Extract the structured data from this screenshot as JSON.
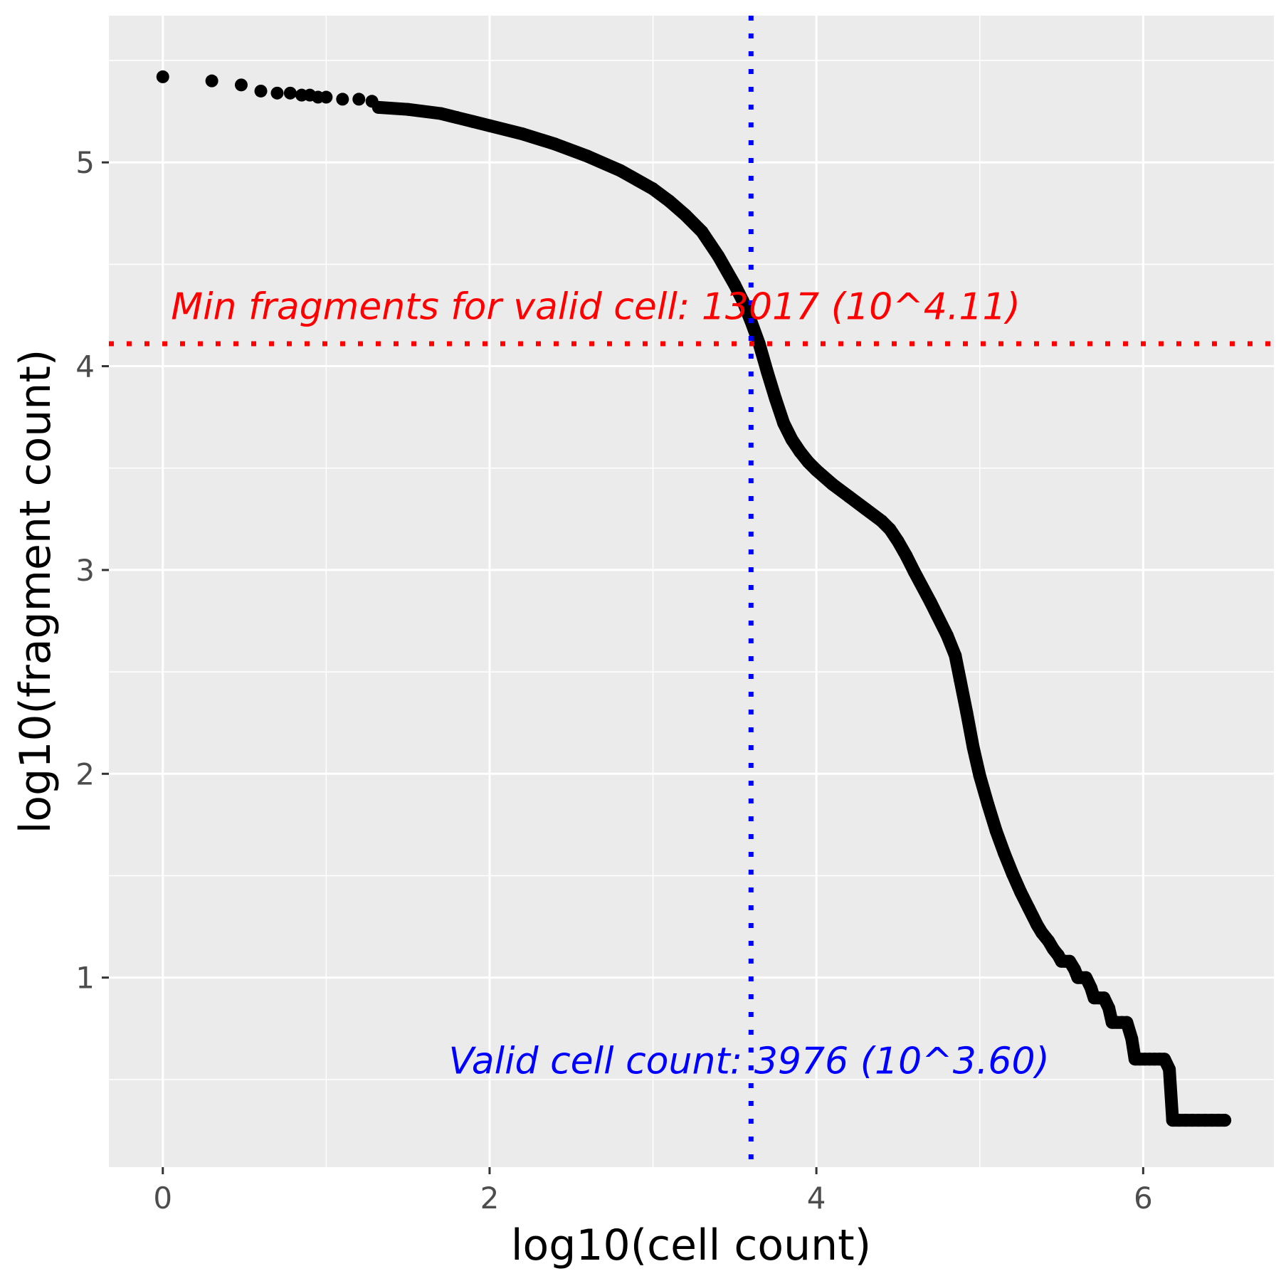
{
  "chart_data": {
    "type": "scatter",
    "title": "",
    "xlabel": "log10(cell count)",
    "ylabel": "log10(fragment count)",
    "xlim": [
      -0.33,
      6.8
    ],
    "ylim": [
      0.07,
      5.72
    ],
    "xticks": [
      0,
      2,
      4,
      6
    ],
    "xtick_labels": [
      "0",
      "2",
      "4",
      "6"
    ],
    "yticks": [
      1,
      2,
      3,
      4,
      5
    ],
    "ytick_labels": [
      "1",
      "2",
      "3",
      "4",
      "5"
    ],
    "grid": true,
    "legend": "none",
    "colors": {
      "panel": "#ebebeb",
      "grid": "#ffffff",
      "points": "#000000",
      "hline": "#ff0000",
      "vline": "#0000ff"
    },
    "series": [
      {
        "points": [
          [
            0.0,
            5.42
          ],
          [
            0.3,
            5.4
          ],
          [
            0.48,
            5.38
          ],
          [
            0.6,
            5.35
          ],
          [
            0.7,
            5.34
          ],
          [
            0.78,
            5.34
          ],
          [
            0.85,
            5.33
          ],
          [
            0.9,
            5.33
          ],
          [
            0.95,
            5.32
          ],
          [
            1.0,
            5.32
          ],
          [
            1.1,
            5.31
          ],
          [
            1.2,
            5.31
          ],
          [
            1.28,
            5.3
          ],
          [
            1.32,
            5.27
          ],
          [
            1.5,
            5.26
          ],
          [
            1.7,
            5.24
          ],
          [
            1.8,
            5.22
          ],
          [
            1.9,
            5.2
          ],
          [
            2.0,
            5.18
          ],
          [
            2.2,
            5.14
          ],
          [
            2.4,
            5.09
          ],
          [
            2.6,
            5.03
          ],
          [
            2.8,
            4.96
          ],
          [
            3.0,
            4.87
          ],
          [
            3.1,
            4.81
          ],
          [
            3.2,
            4.74
          ],
          [
            3.3,
            4.66
          ],
          [
            3.4,
            4.54
          ],
          [
            3.5,
            4.4
          ],
          [
            3.55,
            4.32
          ],
          [
            3.6,
            4.22
          ],
          [
            3.65,
            4.11
          ],
          [
            3.7,
            3.97
          ],
          [
            3.75,
            3.84
          ],
          [
            3.8,
            3.72
          ],
          [
            3.85,
            3.64
          ],
          [
            3.9,
            3.58
          ],
          [
            3.95,
            3.53
          ],
          [
            4.0,
            3.49
          ],
          [
            4.1,
            3.42
          ],
          [
            4.2,
            3.36
          ],
          [
            4.3,
            3.3
          ],
          [
            4.4,
            3.24
          ],
          [
            4.45,
            3.2
          ],
          [
            4.5,
            3.14
          ],
          [
            4.55,
            3.07
          ],
          [
            4.6,
            2.99
          ],
          [
            4.7,
            2.84
          ],
          [
            4.8,
            2.68
          ],
          [
            4.85,
            2.58
          ],
          [
            4.88,
            2.46
          ],
          [
            4.92,
            2.3
          ],
          [
            4.96,
            2.13
          ],
          [
            5.0,
            1.99
          ],
          [
            5.05,
            1.85
          ],
          [
            5.1,
            1.72
          ],
          [
            5.15,
            1.61
          ],
          [
            5.2,
            1.51
          ],
          [
            5.25,
            1.42
          ],
          [
            5.3,
            1.34
          ],
          [
            5.35,
            1.26
          ],
          [
            5.38,
            1.22
          ],
          [
            5.42,
            1.18
          ],
          [
            5.45,
            1.14
          ],
          [
            5.48,
            1.11
          ],
          [
            5.5,
            1.08
          ],
          [
            5.52,
            1.08
          ],
          [
            5.55,
            1.08
          ],
          [
            5.58,
            1.04
          ],
          [
            5.6,
            1.0
          ],
          [
            5.62,
            1.0
          ],
          [
            5.65,
            1.0
          ],
          [
            5.68,
            0.95
          ],
          [
            5.7,
            0.9
          ],
          [
            5.73,
            0.9
          ],
          [
            5.76,
            0.9
          ],
          [
            5.79,
            0.85
          ],
          [
            5.81,
            0.78
          ],
          [
            5.84,
            0.78
          ],
          [
            5.87,
            0.78
          ],
          [
            5.9,
            0.78
          ],
          [
            5.93,
            0.7
          ],
          [
            5.95,
            0.6
          ],
          [
            5.98,
            0.6
          ],
          [
            6.01,
            0.6
          ],
          [
            6.04,
            0.6
          ],
          [
            6.07,
            0.6
          ],
          [
            6.1,
            0.6
          ],
          [
            6.13,
            0.6
          ],
          [
            6.16,
            0.55
          ],
          [
            6.18,
            0.3
          ],
          [
            6.22,
            0.3
          ],
          [
            6.26,
            0.3
          ],
          [
            6.3,
            0.3
          ],
          [
            6.34,
            0.3
          ],
          [
            6.38,
            0.3
          ],
          [
            6.42,
            0.3
          ],
          [
            6.46,
            0.3
          ],
          [
            6.5,
            0.3
          ]
        ]
      }
    ],
    "hline": {
      "y": 4.11,
      "label": "Min fragments for valid cell: 13017 (10^4.11)",
      "label_x": 0.05,
      "label_y": 4.23
    },
    "vline": {
      "x": 3.6,
      "label": "Valid cell count: 3976 (10^3.60)",
      "label_x": 1.75,
      "label_y": 0.53
    }
  }
}
